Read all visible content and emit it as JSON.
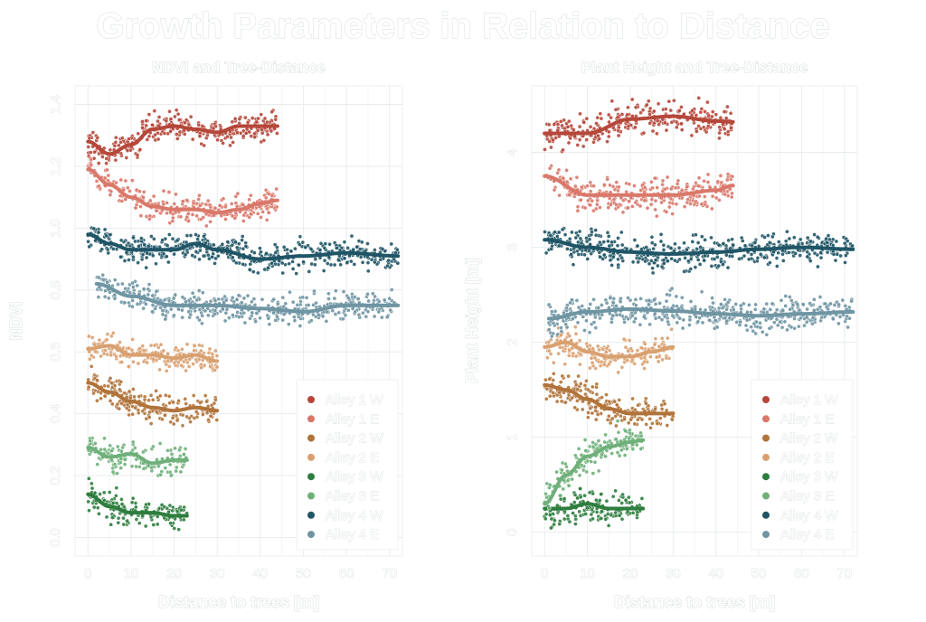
{
  "title": "Growth Parameters in Relation to Distance",
  "chart_data": [
    {
      "type": "scatter",
      "title": "NDVI and Tree-Distance",
      "xlabel": "Distance to trees [m]",
      "ylabel": "NDVI",
      "xlim": [
        -3,
        73
      ],
      "ylim": [
        -0.06,
        1.46
      ],
      "xticks": [
        "0",
        "10",
        "20",
        "30",
        "40",
        "50",
        "60",
        "70"
      ],
      "yticks": [
        "0.0",
        "0.2",
        "0.4",
        "0.6",
        "0.8",
        "1.0",
        "1.2",
        "1.4"
      ],
      "grid": true,
      "legend_position": "bottom-right",
      "spread": 0.08,
      "series": [
        {
          "name": "Alley 1 W",
          "color": "#b5473a",
          "trend": [
            [
              0,
              1.28
            ],
            [
              5,
              1.24
            ],
            [
              10,
              1.27
            ],
            [
              15,
              1.32
            ],
            [
              20,
              1.33
            ],
            [
              25,
              1.32
            ],
            [
              30,
              1.31
            ],
            [
              35,
              1.33
            ],
            [
              40,
              1.33
            ],
            [
              44,
              1.33
            ]
          ]
        },
        {
          "name": "Alley 1 E",
          "color": "#d9786a",
          "trend": [
            [
              0,
              1.19
            ],
            [
              5,
              1.14
            ],
            [
              10,
              1.1
            ],
            [
              15,
              1.07
            ],
            [
              20,
              1.06
            ],
            [
              25,
              1.06
            ],
            [
              30,
              1.05
            ],
            [
              35,
              1.06
            ],
            [
              40,
              1.08
            ],
            [
              44,
              1.09
            ]
          ]
        },
        {
          "name": "Alley 2 W",
          "color": "#b0733a",
          "trend": [
            [
              0,
              0.5
            ],
            [
              5,
              0.47
            ],
            [
              10,
              0.44
            ],
            [
              15,
              0.42
            ],
            [
              20,
              0.41
            ],
            [
              25,
              0.42
            ],
            [
              30,
              0.41
            ]
          ]
        },
        {
          "name": "Alley 2 E",
          "color": "#d9a070",
          "trend": [
            [
              0,
              0.61
            ],
            [
              5,
              0.62
            ],
            [
              10,
              0.59
            ],
            [
              15,
              0.59
            ],
            [
              20,
              0.58
            ],
            [
              25,
              0.59
            ],
            [
              30,
              0.57
            ]
          ]
        },
        {
          "name": "Alley 3 W",
          "color": "#2e7d3e",
          "trend": [
            [
              0,
              0.14
            ],
            [
              5,
              0.1
            ],
            [
              10,
              0.08
            ],
            [
              15,
              0.08
            ],
            [
              20,
              0.07
            ],
            [
              23,
              0.07
            ]
          ]
        },
        {
          "name": "Alley 3 E",
          "color": "#6fb07a",
          "trend": [
            [
              0,
              0.29
            ],
            [
              5,
              0.26
            ],
            [
              10,
              0.27
            ],
            [
              15,
              0.24
            ],
            [
              20,
              0.25
            ],
            [
              23,
              0.25
            ]
          ]
        },
        {
          "name": "Alley 4 W",
          "color": "#1f5566",
          "trend": [
            [
              0,
              0.98
            ],
            [
              5,
              0.95
            ],
            [
              10,
              0.93
            ],
            [
              20,
              0.93
            ],
            [
              25,
              0.95
            ],
            [
              30,
              0.93
            ],
            [
              40,
              0.9
            ],
            [
              50,
              0.91
            ],
            [
              60,
              0.92
            ],
            [
              72,
              0.91
            ]
          ]
        },
        {
          "name": "Alley 4 E",
          "color": "#6f95a3",
          "trend": [
            [
              2,
              0.82
            ],
            [
              10,
              0.78
            ],
            [
              20,
              0.75
            ],
            [
              30,
              0.75
            ],
            [
              40,
              0.74
            ],
            [
              50,
              0.73
            ],
            [
              60,
              0.75
            ],
            [
              72,
              0.75
            ]
          ]
        }
      ]
    },
    {
      "type": "scatter",
      "title": "Plant Height and Tree-Distance",
      "xlabel": "Distance to trees [m]",
      "ylabel": "Plant Height [m]",
      "xlim": [
        -3,
        73
      ],
      "ylim": [
        -0.25,
        4.7
      ],
      "xticks": [
        "0",
        "10",
        "20",
        "30",
        "40",
        "50",
        "60",
        "70"
      ],
      "yticks": [
        "0",
        "1",
        "2",
        "3",
        "4"
      ],
      "grid": true,
      "legend_position": "bottom-right",
      "spread": 0.3,
      "series": [
        {
          "name": "Alley 1 W",
          "color": "#b5473a",
          "trend": [
            [
              0,
              4.2
            ],
            [
              10,
              4.2
            ],
            [
              20,
              4.35
            ],
            [
              30,
              4.38
            ],
            [
              40,
              4.33
            ],
            [
              44,
              4.32
            ]
          ]
        },
        {
          "name": "Alley 1 E",
          "color": "#d9786a",
          "trend": [
            [
              0,
              3.75
            ],
            [
              10,
              3.55
            ],
            [
              20,
              3.55
            ],
            [
              30,
              3.55
            ],
            [
              40,
              3.6
            ],
            [
              44,
              3.65
            ]
          ]
        },
        {
          "name": "Alley 2 W",
          "color": "#b0733a",
          "trend": [
            [
              0,
              1.55
            ],
            [
              5,
              1.5
            ],
            [
              10,
              1.4
            ],
            [
              15,
              1.3
            ],
            [
              20,
              1.25
            ],
            [
              25,
              1.25
            ],
            [
              30,
              1.25
            ]
          ]
        },
        {
          "name": "Alley 2 E",
          "color": "#d9a070",
          "trend": [
            [
              0,
              1.95
            ],
            [
              5,
              2.0
            ],
            [
              10,
              1.9
            ],
            [
              15,
              1.85
            ],
            [
              20,
              1.85
            ],
            [
              25,
              1.9
            ],
            [
              30,
              1.95
            ]
          ]
        },
        {
          "name": "Alley 3 W",
          "color": "#2e7d3e",
          "trend": [
            [
              0,
              0.25
            ],
            [
              5,
              0.25
            ],
            [
              10,
              0.3
            ],
            [
              15,
              0.25
            ],
            [
              20,
              0.25
            ],
            [
              23,
              0.25
            ]
          ]
        },
        {
          "name": "Alley 3 E",
          "color": "#6fb07a",
          "trend": [
            [
              0,
              0.3
            ],
            [
              5,
              0.6
            ],
            [
              10,
              0.8
            ],
            [
              15,
              0.9
            ],
            [
              20,
              0.95
            ],
            [
              23,
              0.97
            ]
          ]
        },
        {
          "name": "Alley 4 W",
          "color": "#1f5566",
          "trend": [
            [
              0,
              3.08
            ],
            [
              10,
              3.0
            ],
            [
              20,
              2.95
            ],
            [
              30,
              2.93
            ],
            [
              40,
              2.95
            ],
            [
              50,
              2.98
            ],
            [
              60,
              3.0
            ],
            [
              72,
              2.98
            ]
          ]
        },
        {
          "name": "Alley 4 E",
          "color": "#6f95a3",
          "trend": [
            [
              1,
              2.25
            ],
            [
              10,
              2.32
            ],
            [
              20,
              2.35
            ],
            [
              30,
              2.33
            ],
            [
              40,
              2.3
            ],
            [
              50,
              2.28
            ],
            [
              60,
              2.3
            ],
            [
              72,
              2.32
            ]
          ]
        }
      ]
    }
  ]
}
